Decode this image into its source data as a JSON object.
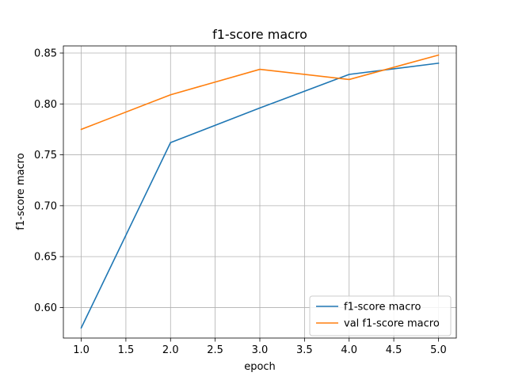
{
  "chart_data": {
    "type": "line",
    "title": "f1-score macro",
    "xlabel": "epoch",
    "ylabel": "f1-score macro",
    "xlim": [
      0.8,
      5.2
    ],
    "ylim": [
      0.57,
      0.857
    ],
    "xticks": [
      1.0,
      1.5,
      2.0,
      2.5,
      3.0,
      3.5,
      4.0,
      4.5,
      5.0
    ],
    "xtick_labels": [
      "1.0",
      "1.5",
      "2.0",
      "2.5",
      "3.0",
      "3.5",
      "4.0",
      "4.5",
      "5.0"
    ],
    "yticks": [
      0.6,
      0.65,
      0.7,
      0.75,
      0.8,
      0.85
    ],
    "ytick_labels": [
      "0.60",
      "0.65",
      "0.70",
      "0.75",
      "0.80",
      "0.85"
    ],
    "grid": true,
    "legend_position": "lower-right",
    "x": [
      1,
      2,
      3,
      4,
      5
    ],
    "series": [
      {
        "name": "f1-score macro",
        "color": "#1f77b4",
        "values": [
          0.58,
          0.762,
          0.796,
          0.829,
          0.84
        ]
      },
      {
        "name": "val f1-score macro",
        "color": "#ff7f0e",
        "values": [
          0.775,
          0.809,
          0.834,
          0.824,
          0.848
        ]
      }
    ]
  }
}
